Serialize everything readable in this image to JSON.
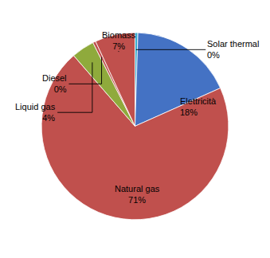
{
  "chart_data": {
    "type": "pie",
    "categories": [
      "Solar thermal",
      "Elettricità",
      "Natural gas",
      "Liquid gas",
      "Diesel",
      "Biomass"
    ],
    "values": [
      0.5,
      18,
      71,
      4,
      0.5,
      7
    ],
    "value_labels": [
      "0%",
      "18%",
      "71%",
      "4%",
      "0%",
      "7%"
    ],
    "data_labels": true,
    "colors": [
      "#3aaccc",
      "#4472c4",
      "#c0504d",
      "#8faa3c",
      "#c0504d",
      "#c0504d"
    ]
  }
}
